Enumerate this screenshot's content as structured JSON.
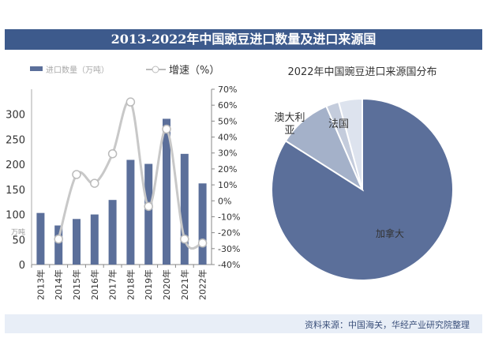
{
  "title": "2013-2022年中国豌豆进口数量及进口来源国",
  "source": "资料来源：中国海关，华经产业研究院整理",
  "colors": {
    "bar": "#5b6f9a",
    "line": "#c8c8c8",
    "title_bg": "#3d5a8c"
  },
  "chart_data": [
    {
      "type": "bar+line",
      "categories": [
        "2013年",
        "2014年",
        "2015年",
        "2016年",
        "2017年",
        "2018年",
        "2019年",
        "2020年",
        "2021年",
        "2022年"
      ],
      "series": [
        {
          "name": "进口数量（万吨）",
          "type": "bar",
          "axis": "left",
          "values": [
            103,
            78,
            91,
            100,
            129,
            209,
            201,
            291,
            221,
            162
          ]
        },
        {
          "name": "增速（%）",
          "type": "line",
          "axis": "right",
          "values": [
            null,
            -24,
            16.5,
            11,
            29.5,
            62,
            -3.5,
            45,
            -24,
            -26.5
          ]
        }
      ],
      "ylabel": "万吨",
      "ylim": [
        0,
        350
      ],
      "yticks": [
        0,
        50,
        100,
        150,
        200,
        250,
        300
      ],
      "y2lim": [
        -40,
        70
      ],
      "y2ticks": [
        "-40%",
        "-30%",
        "-20%",
        "-10%",
        "0%",
        "10%",
        "20%",
        "30%",
        "40%",
        "50%",
        "60%",
        "70%"
      ],
      "legend": "top"
    },
    {
      "type": "pie",
      "title": "2022年中国豌豆进口来源国分布",
      "slices": [
        {
          "label": "加拿大",
          "value": 84,
          "color": "#5b6f9a"
        },
        {
          "label": "澳大利亚",
          "value": 9.5,
          "color": "#a4b1c9"
        },
        {
          "label": "法国",
          "value": 2.3,
          "color": "#c4ccdc"
        },
        {
          "label": "",
          "value": 4.2,
          "color": "#dde3ee"
        }
      ]
    }
  ]
}
